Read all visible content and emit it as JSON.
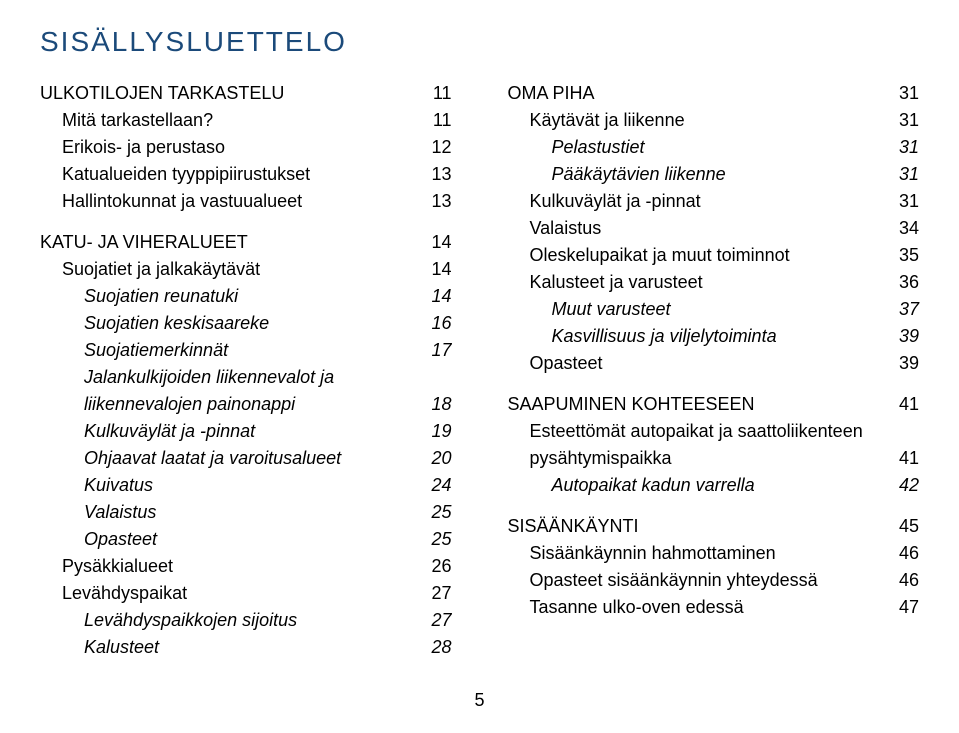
{
  "title": "SISÄLLYSLUETTELO",
  "page_number": "5",
  "colors": {
    "title_color": "#1b4a7a",
    "text_color": "#000000",
    "background": "#ffffff"
  },
  "typography": {
    "title_fontsize": 28,
    "body_fontsize": 18,
    "title_letterspacing": 2
  },
  "left": {
    "g0": [
      {
        "label": "ULKOTILOJEN TARKASTELU",
        "page": "11",
        "indent": 0,
        "italic": false
      },
      {
        "label": "Mitä tarkastellaan?",
        "page": "11",
        "indent": 1,
        "italic": false
      },
      {
        "label": "Erikois- ja perustaso",
        "page": "12",
        "indent": 1,
        "italic": false
      },
      {
        "label": "Katualueiden tyyppipiirustukset",
        "page": "13",
        "indent": 1,
        "italic": false
      },
      {
        "label": "Hallintokunnat ja vastuualueet",
        "page": "13",
        "indent": 1,
        "italic": false
      }
    ],
    "g1": [
      {
        "label": "KATU- JA VIHERALUEET",
        "page": "14",
        "indent": 0,
        "italic": false
      },
      {
        "label": "Suojatiet ja jalkakäytävät",
        "page": "14",
        "indent": 1,
        "italic": false
      },
      {
        "label": "Suojatien reunatuki",
        "page": "14",
        "indent": 2,
        "italic": true
      },
      {
        "label": "Suojatien keskisaareke",
        "page": "16",
        "indent": 2,
        "italic": true
      },
      {
        "label": "Suojatiemerkinnät",
        "page": "17",
        "indent": 2,
        "italic": true
      },
      {
        "label": "Jalankulkijoiden liikennevalot ja",
        "page": "",
        "indent": 2,
        "italic": true
      },
      {
        "label": "liikennevalojen painonappi",
        "page": "18",
        "indent": 2,
        "italic": true
      },
      {
        "label": "Kulkuväylät ja -pinnat",
        "page": "19",
        "indent": 2,
        "italic": true
      },
      {
        "label": "Ohjaavat laatat ja varoitusalueet",
        "page": "20",
        "indent": 2,
        "italic": true
      },
      {
        "label": "Kuivatus",
        "page": "24",
        "indent": 2,
        "italic": true
      },
      {
        "label": "Valaistus",
        "page": "25",
        "indent": 2,
        "italic": true
      },
      {
        "label": "Opasteet",
        "page": "25",
        "indent": 2,
        "italic": true
      },
      {
        "label": "Pysäkkialueet",
        "page": "26",
        "indent": 1,
        "italic": false
      },
      {
        "label": "Levähdyspaikat",
        "page": "27",
        "indent": 1,
        "italic": false
      },
      {
        "label": "Levähdyspaikkojen sijoitus",
        "page": "27",
        "indent": 2,
        "italic": true
      },
      {
        "label": "Kalusteet",
        "page": "28",
        "indent": 2,
        "italic": true
      }
    ]
  },
  "right": {
    "g0": [
      {
        "label": "OMA PIHA",
        "page": "31",
        "indent": 0,
        "italic": false
      },
      {
        "label": "Käytävät ja liikenne",
        "page": "31",
        "indent": 1,
        "italic": false
      },
      {
        "label": "Pelastustiet",
        "page": "31",
        "indent": 2,
        "italic": true
      },
      {
        "label": "Pääkäytävien liikenne",
        "page": "31",
        "indent": 2,
        "italic": true
      },
      {
        "label": "Kulkuväylät ja -pinnat",
        "page": "31",
        "indent": 1,
        "italic": false
      },
      {
        "label": "Valaistus",
        "page": "34",
        "indent": 1,
        "italic": false
      },
      {
        "label": "Oleskelupaikat ja muut toiminnot",
        "page": "35",
        "indent": 1,
        "italic": false
      },
      {
        "label": "Kalusteet ja varusteet",
        "page": "36",
        "indent": 1,
        "italic": false
      },
      {
        "label": "Muut varusteet",
        "page": "37",
        "indent": 2,
        "italic": true
      },
      {
        "label": "Kasvillisuus ja viljelytoiminta",
        "page": "39",
        "indent": 2,
        "italic": true
      },
      {
        "label": "Opasteet",
        "page": "39",
        "indent": 1,
        "italic": false
      }
    ],
    "g1": [
      {
        "label": "SAAPUMINEN KOHTEESEEN",
        "page": "41",
        "indent": 0,
        "italic": false
      },
      {
        "label": "Esteettömät autopaikat ja saattoliikenteen",
        "page": "",
        "indent": 1,
        "italic": false
      },
      {
        "label": "pysähtymispaikka",
        "page": "41",
        "indent": 1,
        "italic": false
      },
      {
        "label": "Autopaikat kadun varrella",
        "page": "42",
        "indent": 2,
        "italic": true
      }
    ],
    "g2": [
      {
        "label": "SISÄÄNKÄYNTI",
        "page": "45",
        "indent": 0,
        "italic": false
      },
      {
        "label": "Sisäänkäynnin hahmottaminen",
        "page": "46",
        "indent": 1,
        "italic": false
      },
      {
        "label": "Opasteet sisäänkäynnin yhteydessä",
        "page": "46",
        "indent": 1,
        "italic": false
      },
      {
        "label": "Tasanne ulko-oven edessä",
        "page": "47",
        "indent": 1,
        "italic": false
      }
    ]
  }
}
